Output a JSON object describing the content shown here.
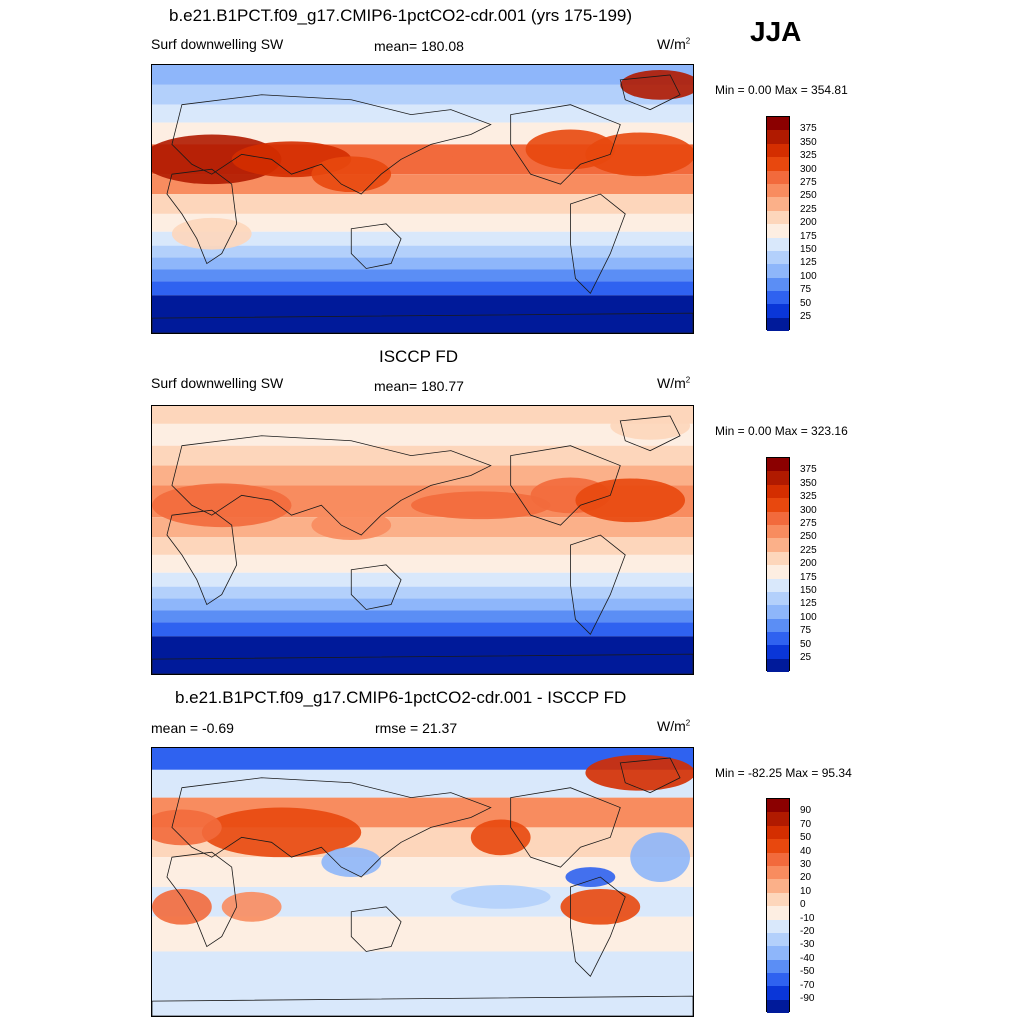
{
  "season": "JJA",
  "panels": [
    {
      "title": "b.e21.B1PCT.f09_g17.CMIP6-1pctCO2-cdr.001 (yrs 175-199)",
      "left": "Surf downwelling SW",
      "center": "mean= 180.08",
      "units": "W/m",
      "units_sup": "2",
      "minmax": "Min =   0.00 Max = 354.81",
      "kind": "abs"
    },
    {
      "title": "ISCCP FD",
      "left": "Surf downwelling SW",
      "center": "mean= 180.77",
      "units": "W/m",
      "units_sup": "2",
      "minmax": "Min =   0.00 Max = 323.16",
      "kind": "obs"
    },
    {
      "title": "b.e21.B1PCT.f09_g17.CMIP6-1pctCO2-cdr.001 - ISCCP FD",
      "left": "mean =  -0.69",
      "center": "rmse =  21.37",
      "units": "W/m",
      "units_sup": "2",
      "minmax": "Min = -82.25 Max =  95.34",
      "kind": "diff"
    }
  ],
  "colorbars": {
    "abs": {
      "labels": [
        "375",
        "350",
        "325",
        "300",
        "275",
        "250",
        "225",
        "200",
        "175",
        "150",
        "125",
        "100",
        "75",
        "50",
        "25"
      ],
      "colors": [
        "#8b0000",
        "#b01a00",
        "#d42e00",
        "#e8480e",
        "#f26a3c",
        "#f88c5f",
        "#fbb089",
        "#fdd6bb",
        "#fdeee2",
        "#d9e8fb",
        "#b3d0fb",
        "#8eb6fa",
        "#5b8ef5",
        "#2f62f0",
        "#0a36d8",
        "#001a9a"
      ]
    },
    "diff": {
      "labels": [
        "90",
        "70",
        "50",
        "40",
        "30",
        "20",
        "10",
        "0",
        "-10",
        "-20",
        "-30",
        "-40",
        "-50",
        "-70",
        "-90"
      ],
      "colors": [
        "#8b0000",
        "#b01a00",
        "#d42e00",
        "#e8480e",
        "#f26a3c",
        "#f88c5f",
        "#fbb089",
        "#fdd6bb",
        "#fdeee2",
        "#d9e8fb",
        "#b3d0fb",
        "#8eb6fa",
        "#5b8ef5",
        "#2f62f0",
        "#0a36d8",
        "#001a9a"
      ]
    }
  },
  "chart_data": [
    {
      "type": "heatmap",
      "title": "b.e21.B1PCT.f09_g17.CMIP6-1pctCO2-cdr.001 (yrs 175-199)",
      "variable": "Surf downwelling SW",
      "season": "JJA",
      "units": "W/m2",
      "mean": 180.08,
      "min": 0.0,
      "max": 354.81,
      "contour_levels": [
        25,
        50,
        75,
        100,
        125,
        150,
        175,
        200,
        225,
        250,
        275,
        300,
        325,
        350,
        375
      ]
    },
    {
      "type": "heatmap",
      "title": "ISCCP FD",
      "variable": "Surf downwelling SW",
      "season": "JJA",
      "units": "W/m2",
      "mean": 180.77,
      "min": 0.0,
      "max": 323.16,
      "contour_levels": [
        25,
        50,
        75,
        100,
        125,
        150,
        175,
        200,
        225,
        250,
        275,
        300,
        325,
        350,
        375
      ]
    },
    {
      "type": "heatmap",
      "title": "b.e21.B1PCT.f09_g17.CMIP6-1pctCO2-cdr.001 - ISCCP FD",
      "season": "JJA",
      "units": "W/m2",
      "mean": -0.69,
      "rmse": 21.37,
      "min": -82.25,
      "max": 95.34,
      "contour_levels": [
        -90,
        -70,
        -50,
        -40,
        -30,
        -20,
        -10,
        0,
        10,
        20,
        30,
        40,
        50,
        70,
        90
      ]
    }
  ]
}
